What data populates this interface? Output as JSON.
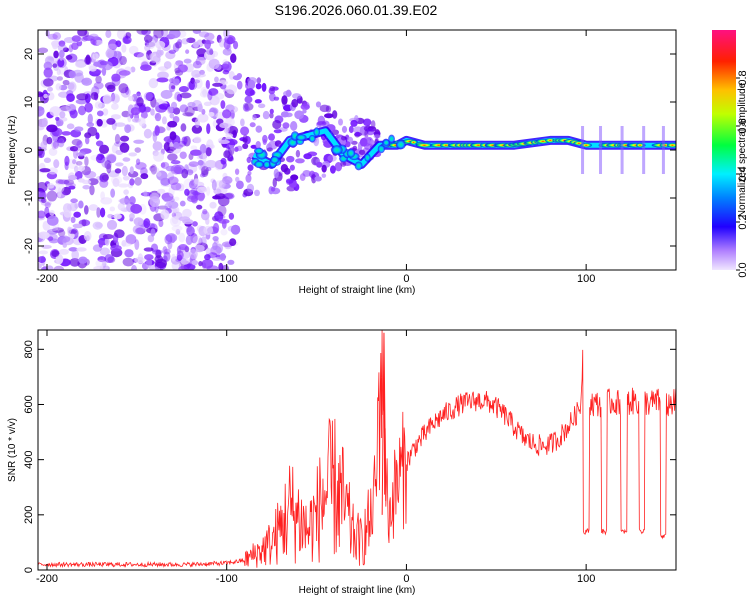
{
  "title": "S196.2026.060.01.39.E02",
  "chart_data": [
    {
      "type": "heatmap",
      "xlabel": "Height of straight line (km)",
      "ylabel": "Frequency (Hz)",
      "xlim": [
        -205,
        150
      ],
      "ylim": [
        -25,
        25
      ],
      "xticks": [
        -200,
        -100,
        0,
        100
      ],
      "yticks": [
        -20,
        -10,
        0,
        10,
        20
      ],
      "colorbar": {
        "label": "Normalized spectral amplitude",
        "range": [
          0,
          1
        ],
        "ticks": [
          0.0,
          0.2,
          0.4,
          0.6,
          0.8
        ],
        "tick_labels": [
          "0.0",
          "0.2",
          "0.4",
          "0.6",
          "0.8"
        ],
        "colors": [
          "#f0e6ff",
          "#7a00ff",
          "#0000ff",
          "#00e5ff",
          "#00ff00",
          "#ffff00",
          "#ff8000",
          "#ff0000",
          "#ff0080"
        ]
      },
      "ridge": {
        "x": [
          -85,
          -75,
          -65,
          -55,
          -45,
          -35,
          -25,
          -15,
          -5,
          0,
          10,
          20,
          40,
          60,
          80,
          90,
          100,
          120,
          140,
          150
        ],
        "y": [
          -1,
          -3,
          2,
          3,
          4,
          -1,
          -3,
          1,
          1,
          2,
          1,
          1,
          1,
          1,
          2,
          2,
          1,
          1,
          1,
          1
        ]
      }
    },
    {
      "type": "line",
      "xlabel": "Height of straight line (km)",
      "ylabel": "SNR (10 * v/v)",
      "xlim": [
        -205,
        150
      ],
      "ylim": [
        0,
        870
      ],
      "xticks": [
        -200,
        -100,
        0,
        100
      ],
      "yticks": [
        0,
        200,
        400,
        600,
        800
      ],
      "series": [
        {
          "name": "SNR",
          "color": "#ff2020",
          "x": [
            -205,
            -180,
            -150,
            -120,
            -100,
            -90,
            -85,
            -80,
            -75,
            -70,
            -65,
            -60,
            -55,
            -50,
            -45,
            -40,
            -35,
            -30,
            -25,
            -20,
            -17,
            -15,
            -13,
            -12,
            -10,
            -8,
            -5,
            0,
            5,
            10,
            15,
            20,
            25,
            30,
            35,
            40,
            45,
            50,
            55,
            60,
            65,
            70,
            75,
            80,
            85,
            90,
            95,
            97,
            98,
            100,
            105,
            110,
            115,
            120,
            125,
            130,
            135,
            140,
            145,
            150
          ],
          "y": [
            20,
            20,
            20,
            20,
            25,
            35,
            55,
            75,
            100,
            150,
            220,
            190,
            140,
            200,
            280,
            300,
            240,
            130,
            100,
            180,
            300,
            640,
            860,
            420,
            180,
            250,
            320,
            390,
            450,
            490,
            530,
            560,
            580,
            600,
            610,
            615,
            610,
            590,
            560,
            520,
            480,
            460,
            450,
            455,
            480,
            520,
            570,
            600,
            780,
            620,
            600,
            605,
            610,
            600,
            610,
            615,
            605,
            610,
            600,
            610
          ],
          "dropouts": [
            {
              "x": 100,
              "y": 140
            },
            {
              "x": 110,
              "y": 140
            },
            {
              "x": 121,
              "y": 140
            },
            {
              "x": 131,
              "y": 140
            },
            {
              "x": 143,
              "y": 120
            }
          ]
        }
      ]
    }
  ]
}
